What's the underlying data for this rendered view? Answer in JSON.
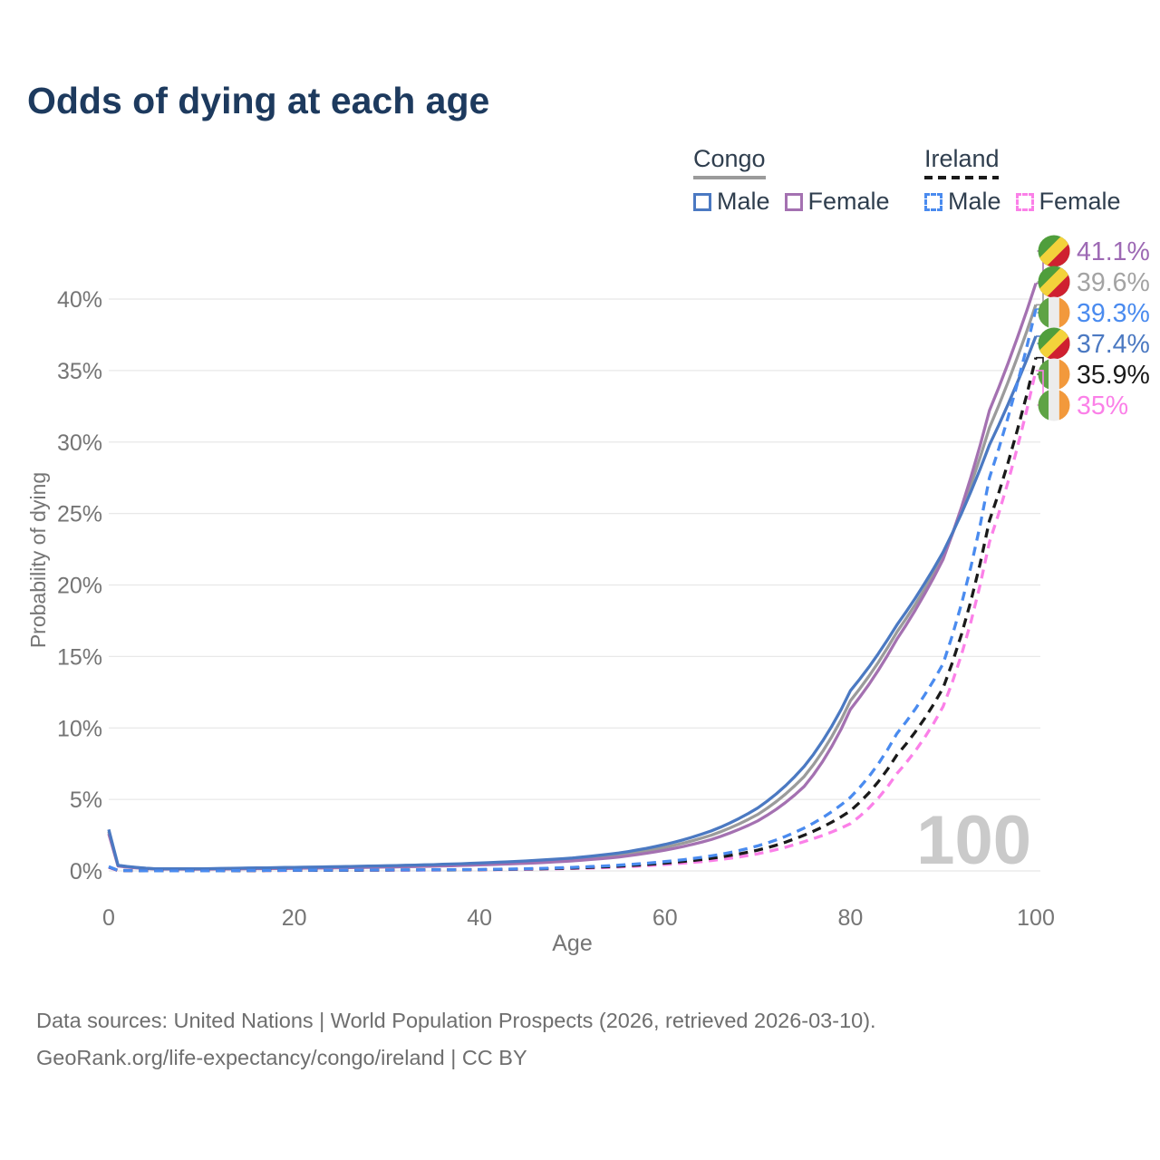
{
  "title": "Odds of dying at each age",
  "legend": {
    "groups": [
      {
        "name": "Congo",
        "line_style": "solid",
        "line_color": "#9b9b9b",
        "items": [
          {
            "label": "Male",
            "color": "#4b79c2",
            "style": "solid"
          },
          {
            "label": "Female",
            "color": "#a471b1",
            "style": "solid"
          }
        ]
      },
      {
        "name": "Ireland",
        "line_style": "dashed",
        "line_color": "#1a1a1a",
        "items": [
          {
            "label": "Male",
            "color": "#4a8bef",
            "style": "dashed"
          },
          {
            "label": "Female",
            "color": "#fb80e8",
            "style": "dashed"
          }
        ]
      }
    ]
  },
  "chart_data": {
    "type": "line",
    "title": "Odds of dying at each age",
    "xlabel": "Age",
    "ylabel": "Probability of dying",
    "xlim": [
      0,
      100
    ],
    "ylim": [
      0,
      42
    ],
    "grid": "horizontal",
    "legend_position": "top-right",
    "watermark": "100",
    "x_ticks": [
      0,
      20,
      40,
      60,
      80,
      100
    ],
    "y_ticks": [
      0,
      5,
      10,
      15,
      20,
      25,
      30,
      35,
      40
    ],
    "y_tick_labels": [
      "0%",
      "5%",
      "10%",
      "15%",
      "20%",
      "25%",
      "30%",
      "35%",
      "40%"
    ],
    "x": [
      0,
      1,
      5,
      10,
      15,
      20,
      25,
      30,
      35,
      40,
      45,
      50,
      55,
      60,
      65,
      70,
      75,
      80,
      85,
      90,
      95,
      100
    ],
    "series": [
      {
        "name": "Congo Both sexes",
        "country": "Congo",
        "sex": "Both",
        "style": "solid",
        "color": "#9b9b9b",
        "label_color": "#a3a3a3",
        "flag": "congo",
        "end_label": "39.6%",
        "values": [
          2.75,
          0.37,
          0.14,
          0.13,
          0.17,
          0.21,
          0.26,
          0.31,
          0.38,
          0.48,
          0.61,
          0.8,
          1.1,
          1.65,
          2.5,
          3.95,
          6.6,
          11.9,
          16.7,
          22.0,
          31.0,
          39.6
        ]
      },
      {
        "name": "Congo Female",
        "country": "Congo",
        "sex": "Female",
        "style": "solid",
        "color": "#a471b1",
        "label_color": "#9d69b4",
        "flag": "congo",
        "end_label": "41.1%",
        "values": [
          2.6,
          0.34,
          0.13,
          0.12,
          0.15,
          0.18,
          0.22,
          0.27,
          0.33,
          0.42,
          0.53,
          0.7,
          0.97,
          1.45,
          2.2,
          3.5,
          5.9,
          11.3,
          16.2,
          21.8,
          32.2,
          41.1
        ]
      },
      {
        "name": "Congo Male",
        "country": "Congo",
        "sex": "Male",
        "style": "solid",
        "color": "#4b79c2",
        "label_color": "#4b79c2",
        "flag": "congo",
        "end_label": "37.4%",
        "values": [
          2.9,
          0.4,
          0.15,
          0.15,
          0.2,
          0.25,
          0.3,
          0.36,
          0.44,
          0.55,
          0.7,
          0.9,
          1.25,
          1.85,
          2.8,
          4.4,
          7.3,
          12.6,
          17.2,
          22.3,
          29.8,
          37.4
        ]
      },
      {
        "name": "Ireland Female",
        "country": "Ireland",
        "sex": "Female",
        "style": "dashed",
        "color": "#fb80e8",
        "label_color": "#fb80e8",
        "flag": "ireland",
        "end_label": "35%",
        "values": [
          0.25,
          0.02,
          0.01,
          0.01,
          0.02,
          0.03,
          0.04,
          0.05,
          0.06,
          0.08,
          0.11,
          0.17,
          0.27,
          0.45,
          0.72,
          1.2,
          2.05,
          3.3,
          6.8,
          11.5,
          23.0,
          35.0
        ]
      },
      {
        "name": "Ireland Both sexes",
        "country": "Ireland",
        "sex": "Both",
        "style": "dashed",
        "color": "#1a1a1a",
        "label_color": "#1a1a1a",
        "flag": "ireland",
        "end_label": "35.9%",
        "values": [
          0.28,
          0.03,
          0.01,
          0.01,
          0.025,
          0.04,
          0.05,
          0.06,
          0.07,
          0.09,
          0.13,
          0.2,
          0.33,
          0.55,
          0.88,
          1.45,
          2.5,
          4.2,
          8.1,
          12.8,
          24.5,
          35.9
        ]
      },
      {
        "name": "Ireland Male",
        "country": "Ireland",
        "sex": "Male",
        "style": "dashed",
        "color": "#4a8bef",
        "label_color": "#4a8bef",
        "flag": "ireland",
        "end_label": "39.3%",
        "values": [
          0.3,
          0.03,
          0.01,
          0.01,
          0.03,
          0.05,
          0.06,
          0.07,
          0.08,
          0.1,
          0.15,
          0.25,
          0.4,
          0.65,
          1.05,
          1.75,
          3.0,
          5.15,
          9.6,
          14.5,
          27.5,
          39.3
        ]
      }
    ],
    "flag_colors": {
      "congo": {
        "green": "#4f9e3c",
        "yellow": "#f3d23b",
        "red": "#cf2030"
      },
      "ireland": {
        "green": "#5ea345",
        "white": "#ececec",
        "orange": "#f2993c"
      }
    }
  },
  "footer": {
    "line1": "Data sources: United Nations | World Population Prospects (2026, retrieved 2026-03-10).",
    "line2": "GeoRank.org/life-expectancy/congo/ireland | CC BY"
  }
}
